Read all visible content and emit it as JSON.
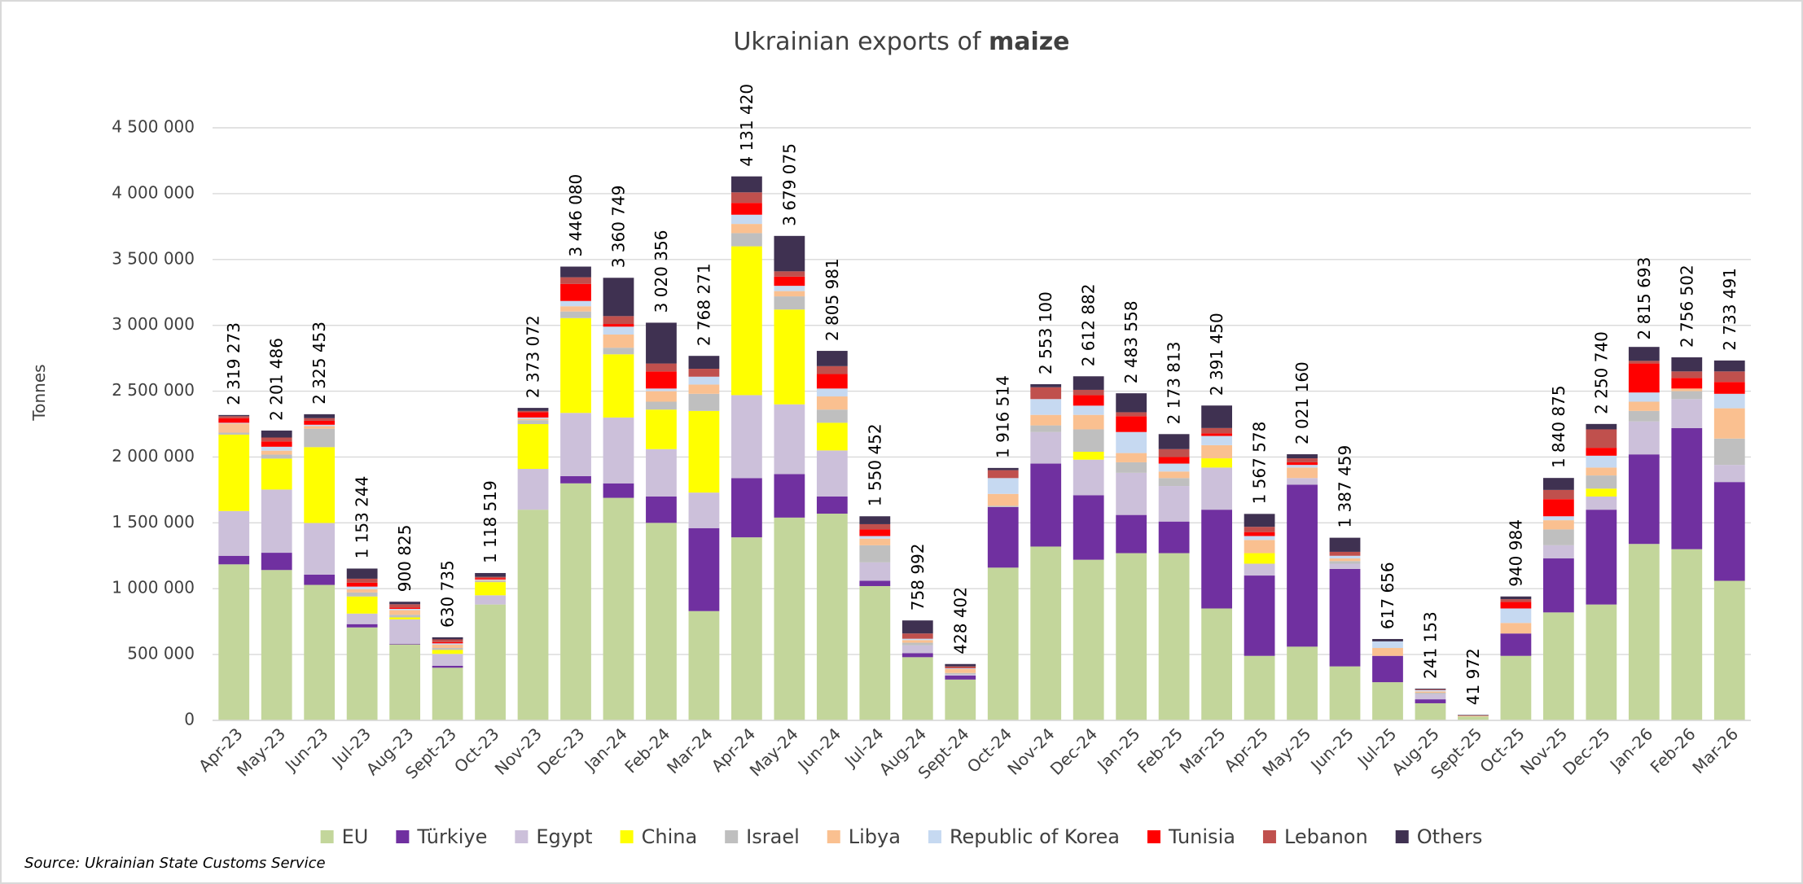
{
  "chart_data": {
    "type": "stacked_bar",
    "title": "Ukrainian exports of",
    "title_emphasis": "maize",
    "y_label": "Tonnes",
    "source": "Source: Ukrainian State Customs Service",
    "categories": [
      "Apr-23",
      "May-23",
      "Jun-23",
      "Jul-23",
      "Aug-23",
      "Sept-23",
      "Oct-23",
      "Nov-23",
      "Dec-23",
      "Jan-24",
      "Feb-24",
      "Mar-24",
      "Apr-24",
      "May-24",
      "Jun-24",
      "Jul-24",
      "Aug-24",
      "Sept-24",
      "Oct-24",
      "Nov-24",
      "Dec-24",
      "Jan-25",
      "Feb-25",
      "Mar-25",
      "Apr-25",
      "May-25",
      "Jun-25",
      "Jul-25",
      "Aug-25",
      "Sept-25",
      "Oct-25",
      "Nov-25",
      "Dec-25",
      "Jan-26",
      "Feb-26",
      "Mar-26"
    ],
    "ylim": [
      0,
      4500000
    ],
    "yticks": [
      {
        "value": 0,
        "label": "0"
      },
      {
        "value": 500000,
        "label": "500 000"
      },
      {
        "value": 1000000,
        "label": "1 000 000"
      },
      {
        "value": 1500000,
        "label": "1 500 000"
      },
      {
        "value": 2000000,
        "label": "2 000 000"
      },
      {
        "value": 2500000,
        "label": "2 500 000"
      },
      {
        "value": 3000000,
        "label": "3 000 000"
      },
      {
        "value": 3500000,
        "label": "3 500 000"
      },
      {
        "value": 4000000,
        "label": "4 000 000"
      },
      {
        "value": 4500000,
        "label": "4 500 000"
      }
    ],
    "grid": true,
    "legend": "bottom",
    "series": [
      {
        "name": "EU",
        "color": "#c3d69b",
        "values": [
          1185000,
          1142000,
          1029000,
          706000,
          577000,
          400000,
          880000,
          1600000,
          1800000,
          1690000,
          1500000,
          830000,
          1390000,
          1540000,
          1570000,
          1020000,
          480000,
          310000,
          1160000,
          1320000,
          1220000,
          1270000,
          1270000,
          850000,
          490000,
          560000,
          410000,
          290000,
          130000,
          30000,
          490000,
          820000,
          880000,
          1340000,
          1300000,
          1060000
        ]
      },
      {
        "name": "Türkiye",
        "color": "#7030a0",
        "values": [
          65000,
          131000,
          78000,
          25000,
          5000,
          15000,
          0,
          0,
          55000,
          110000,
          200000,
          630000,
          450000,
          330000,
          130000,
          40000,
          30000,
          30000,
          460000,
          630000,
          490000,
          290000,
          240000,
          750000,
          610000,
          1230000,
          740000,
          200000,
          30000,
          0,
          170000,
          410000,
          720000,
          680000,
          920000,
          750000
        ]
      },
      {
        "name": "Egypt",
        "color": "#ccc0da",
        "values": [
          340000,
          480000,
          392000,
          80000,
          185000,
          90000,
          70000,
          310000,
          480000,
          500000,
          360000,
          270000,
          630000,
          530000,
          350000,
          140000,
          60000,
          10000,
          0,
          240000,
          270000,
          320000,
          270000,
          320000,
          90000,
          50000,
          40000,
          0,
          40000,
          0,
          0,
          100000,
          100000,
          250000,
          220000,
          130000
        ]
      },
      {
        "name": "China",
        "color": "#ffff00",
        "values": [
          580000,
          235000,
          576000,
          130000,
          15000,
          30000,
          100000,
          340000,
          720000,
          480000,
          300000,
          620000,
          1130000,
          720000,
          210000,
          0,
          0,
          0,
          0,
          0,
          60000,
          0,
          0,
          70000,
          80000,
          0,
          0,
          0,
          0,
          0,
          0,
          0,
          60000,
          0,
          0,
          0
        ]
      },
      {
        "name": "Israel",
        "color": "#bfbfbf",
        "values": [
          15000,
          30000,
          140000,
          30000,
          20000,
          15000,
          10000,
          30000,
          50000,
          50000,
          60000,
          130000,
          100000,
          100000,
          100000,
          130000,
          20000,
          10000,
          10000,
          50000,
          170000,
          80000,
          60000,
          0,
          0,
          0,
          20000,
          0,
          10000,
          0,
          0,
          120000,
          100000,
          80000,
          60000,
          200000
        ]
      },
      {
        "name": "Libya",
        "color": "#fac090",
        "values": [
          70000,
          30000,
          20000,
          25000,
          35000,
          25000,
          5000,
          10000,
          40000,
          100000,
          80000,
          70000,
          70000,
          40000,
          100000,
          50000,
          20000,
          30000,
          90000,
          80000,
          110000,
          70000,
          50000,
          100000,
          100000,
          80000,
          20000,
          60000,
          10000,
          5000,
          80000,
          70000,
          60000,
          70000,
          20000,
          230000
        ]
      },
      {
        "name": "Republic of Korea",
        "color": "#c6d9f1",
        "values": [
          5000,
          30000,
          10000,
          20000,
          10000,
          10000,
          5000,
          10000,
          40000,
          60000,
          20000,
          60000,
          70000,
          40000,
          60000,
          20000,
          10000,
          5000,
          120000,
          120000,
          70000,
          160000,
          60000,
          70000,
          30000,
          20000,
          20000,
          50000,
          10000,
          0,
          110000,
          30000,
          90000,
          70000,
          0,
          110000
        ]
      },
      {
        "name": "Tunisia",
        "color": "#ff0000",
        "values": [
          35000,
          40000,
          30000,
          30000,
          10000,
          10000,
          10000,
          40000,
          130000,
          20000,
          130000,
          0,
          90000,
          70000,
          110000,
          50000,
          0,
          0,
          0,
          0,
          80000,
          120000,
          50000,
          20000,
          30000,
          20000,
          0,
          0,
          0,
          0,
          50000,
          130000,
          60000,
          220000,
          80000,
          90000
        ]
      },
      {
        "name": "Lebanon",
        "color": "#c0504d",
        "values": [
          15000,
          30000,
          20000,
          30000,
          25000,
          20000,
          10000,
          10000,
          50000,
          60000,
          60000,
          60000,
          80000,
          40000,
          60000,
          40000,
          40000,
          15000,
          60000,
          90000,
          40000,
          30000,
          60000,
          40000,
          40000,
          30000,
          30000,
          0,
          5000,
          3000,
          20000,
          70000,
          140000,
          20000,
          50000,
          80000
        ]
      },
      {
        "name": "Others",
        "color": "#3f3151",
        "values": [
          9000,
          53000,
          30000,
          77000,
          19000,
          16000,
          29000,
          23000,
          81000,
          291000,
          310000,
          98000,
          121000,
          269000,
          116000,
          60000,
          99000,
          18000,
          17000,
          23000,
          103000,
          144000,
          114000,
          171000,
          98000,
          31000,
          107000,
          18000,
          6000,
          4000,
          21000,
          91000,
          41000,
          106000,
          107000,
          83000
        ]
      }
    ],
    "totals": [
      2319273,
      2201486,
      2325453,
      1153244,
      900825,
      630735,
      1118519,
      2373072,
      3446080,
      3360749,
      3020356,
      2768271,
      4131420,
      3679075,
      2805981,
      1550452,
      758992,
      428402,
      1916514,
      2553100,
      2612882,
      2483558,
      2173813,
      2391450,
      1567578,
      2021160,
      1387459,
      617656,
      241153,
      41972,
      940984,
      1840875,
      2250740,
      2815693,
      2756502,
      2733491
    ],
    "total_labels": [
      "2 319 273",
      "2 201 486",
      "2 325 453",
      "1 153 244",
      "900 825",
      "630 735",
      "1 118 519",
      "2 373 072",
      "3 446 080",
      "3 360 749",
      "3 020 356",
      "2 768 271",
      "4 131 420",
      "3 679 075",
      "2 805 981",
      "1 550 452",
      "758 992",
      "428 402",
      "1 916 514",
      "2 553 100",
      "2 612 882",
      "2 483 558",
      "2 173 813",
      "2 391 450",
      "1 567 578",
      "2 021 160",
      "1 387 459",
      "617 656",
      "241 153",
      "41 972",
      "940 984",
      "1 840 875",
      "2 250 740",
      "2 815 693",
      "2 756 502",
      "2 733 491"
    ]
  }
}
